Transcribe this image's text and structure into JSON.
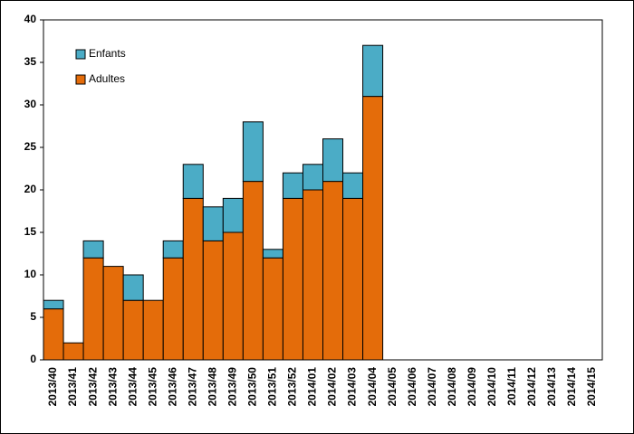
{
  "chart_data": {
    "type": "bar",
    "stacked": true,
    "categories": [
      "2013/40",
      "2013/41",
      "2013/42",
      "2013/43",
      "2013/44",
      "2013/45",
      "2013/46",
      "2013/47",
      "2013/48",
      "2013/49",
      "2013/50",
      "2013/51",
      "2013/52",
      "2014/01",
      "2014/02",
      "2014/03",
      "2014/04",
      "2014/05",
      "2014/06",
      "2014/07",
      "2014/08",
      "2014/09",
      "2014/10",
      "2014/11",
      "2014/12",
      "2014/13",
      "2014/14",
      "2014/15"
    ],
    "series": [
      {
        "name": "Adultes",
        "color": "#e46c0a",
        "values": [
          6,
          2,
          12,
          11,
          7,
          7,
          12,
          19,
          14,
          15,
          21,
          12,
          19,
          20,
          21,
          19,
          31,
          null,
          null,
          null,
          null,
          null,
          null,
          null,
          null,
          null,
          null,
          null
        ]
      },
      {
        "name": "Enfants",
        "color": "#4bacc6",
        "values": [
          1,
          0,
          2,
          0,
          3,
          0,
          2,
          4,
          4,
          4,
          7,
          1,
          3,
          3,
          5,
          3,
          6,
          null,
          null,
          null,
          null,
          null,
          null,
          null,
          null,
          null,
          null,
          null
        ]
      }
    ],
    "ylim": [
      0,
      40
    ],
    "yticks": [
      0,
      5,
      10,
      15,
      20,
      25,
      30,
      35,
      40
    ],
    "grid": false,
    "legend": "top-left"
  }
}
